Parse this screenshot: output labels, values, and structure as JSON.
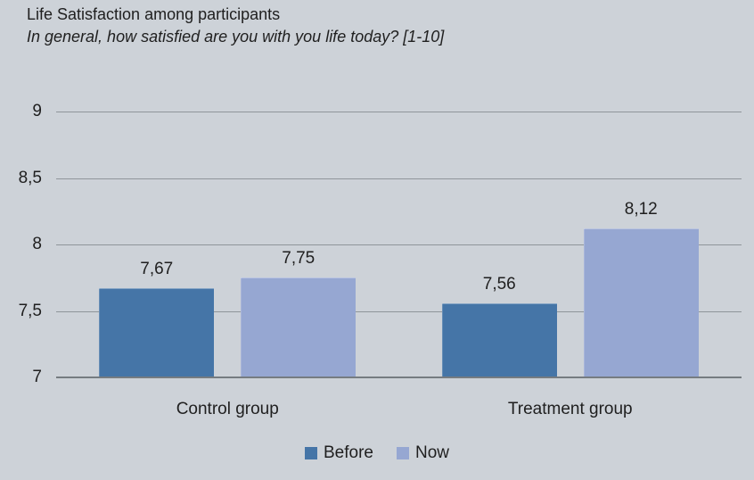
{
  "chart_data": {
    "type": "bar",
    "title": "Life Satisfaction among participants",
    "subtitle": "In general, how satisfied are you with you life today? [1-10]",
    "categories": [
      "Control group",
      "Treatment group"
    ],
    "series": [
      {
        "name": "Before",
        "color": "#4575A7",
        "values": [
          7.67,
          7.56
        ],
        "value_labels": [
          "7,67",
          "7,56"
        ]
      },
      {
        "name": "Now",
        "color": "#96A7D2",
        "values": [
          7.75,
          8.12
        ],
        "value_labels": [
          "7,75",
          "8,12"
        ]
      }
    ],
    "y_axis": {
      "min": 7,
      "max": 9,
      "ticks": [
        9,
        8.5,
        8,
        7.5,
        7
      ],
      "tick_labels": [
        "9",
        "8,5",
        "8",
        "7,5",
        "7"
      ]
    },
    "legend": {
      "position": "bottom",
      "entries": [
        "Before",
        "Now"
      ]
    },
    "grid": true,
    "decimal_separator": ",",
    "ylim": [
      7,
      9
    ]
  },
  "colors": {
    "background": "#CDD2D8",
    "gridline": "#8F959A",
    "axis_line": "#767C81",
    "text": "#1F1F1F",
    "series_before": "#4575A7",
    "series_now": "#96A7D2"
  }
}
